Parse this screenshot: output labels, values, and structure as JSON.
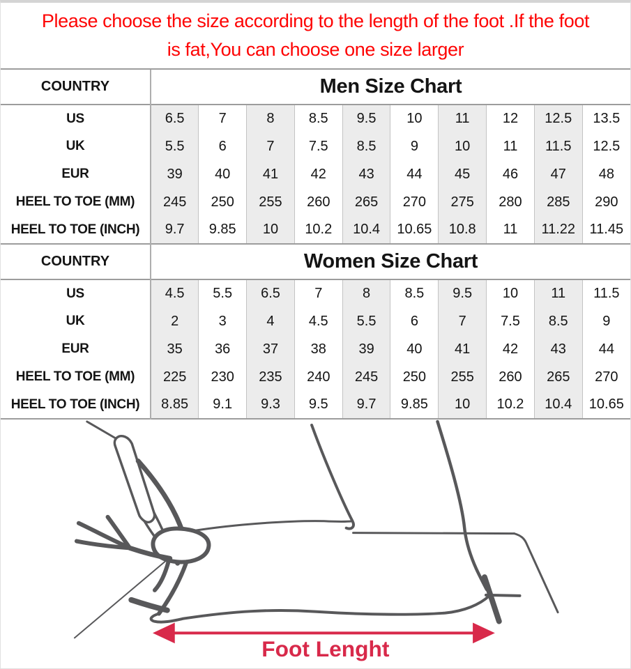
{
  "notice": {
    "line1": "Please choose the size according to the length of the foot .If the foot",
    "line2": "is fat,You can choose one size larger"
  },
  "men_table": {
    "corner_label": "COUNTRY",
    "title": "Men Size Chart",
    "rows": [
      {
        "label": "US",
        "values": [
          "6.5",
          "7",
          "8",
          "8.5",
          "9.5",
          "10",
          "11",
          "12",
          "12.5",
          "13.5"
        ]
      },
      {
        "label": "UK",
        "values": [
          "5.5",
          "6",
          "7",
          "7.5",
          "8.5",
          "9",
          "10",
          "11",
          "11.5",
          "12.5"
        ]
      },
      {
        "label": "EUR",
        "values": [
          "39",
          "40",
          "41",
          "42",
          "43",
          "44",
          "45",
          "46",
          "47",
          "48"
        ]
      },
      {
        "label": "HEEL TO TOE (MM)",
        "values": [
          "245",
          "250",
          "255",
          "260",
          "265",
          "270",
          "275",
          "280",
          "285",
          "290"
        ]
      },
      {
        "label": "HEEL TO TOE (INCH)",
        "values": [
          "9.7",
          "9.85",
          "10",
          "10.2",
          "10.4",
          "10.65",
          "10.8",
          "11",
          "11.22",
          "11.45"
        ]
      }
    ]
  },
  "women_table": {
    "corner_label": "COUNTRY",
    "title": "Women Size Chart",
    "rows": [
      {
        "label": "US",
        "values": [
          "4.5",
          "5.5",
          "6.5",
          "7",
          "8",
          "8.5",
          "9.5",
          "10",
          "11",
          "11.5"
        ]
      },
      {
        "label": "UK",
        "values": [
          "2",
          "3",
          "4",
          "4.5",
          "5.5",
          "6",
          "7",
          "7.5",
          "8.5",
          "9"
        ]
      },
      {
        "label": "EUR",
        "values": [
          "35",
          "36",
          "37",
          "38",
          "39",
          "40",
          "41",
          "42",
          "43",
          "44"
        ]
      },
      {
        "label": "HEEL TO TOE (MM)",
        "values": [
          "225",
          "230",
          "235",
          "240",
          "245",
          "250",
          "255",
          "260",
          "265",
          "270"
        ]
      },
      {
        "label": "HEEL TO TOE (INCH)",
        "values": [
          "8.85",
          "9.1",
          "9.3",
          "9.5",
          "9.7",
          "9.85",
          "10",
          "10.2",
          "10.4",
          "10.65"
        ]
      }
    ]
  },
  "diagram": {
    "arrow_label": "Foot Lenght"
  },
  "colors": {
    "notice_text": "#fe0404",
    "stripe": "#ececec",
    "border_strong": "#9c9c9c",
    "border_mid": "#aeaeae",
    "border_light": "#c3c3c3",
    "line_art": "#58585a",
    "arrow": "#d8294a",
    "top_band": "#d4d4d4"
  }
}
